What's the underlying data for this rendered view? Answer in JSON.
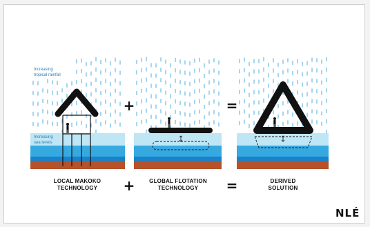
{
  "diagram": {
    "rain_label": "Increasing\ntropical rainfall",
    "sea_label": "Increasing\nsea levels",
    "operators": {
      "plus": "+",
      "equals": "="
    },
    "captions": {
      "local": "LOCAL MAKOKO\nTECHNOLOGY",
      "global": "GLOBAL FLOTATION\nTECHNOLOGY",
      "derived": "DERIVED\nSOLUTION"
    },
    "logo": "NLÉ",
    "colors": {
      "rain": "#7ec5e8",
      "sea_light": "#bfe6f5",
      "sea_mid": "#36a9e1",
      "sea_deep": "#1783cc",
      "ground": "#b5522a",
      "structure": "#111111"
    }
  }
}
